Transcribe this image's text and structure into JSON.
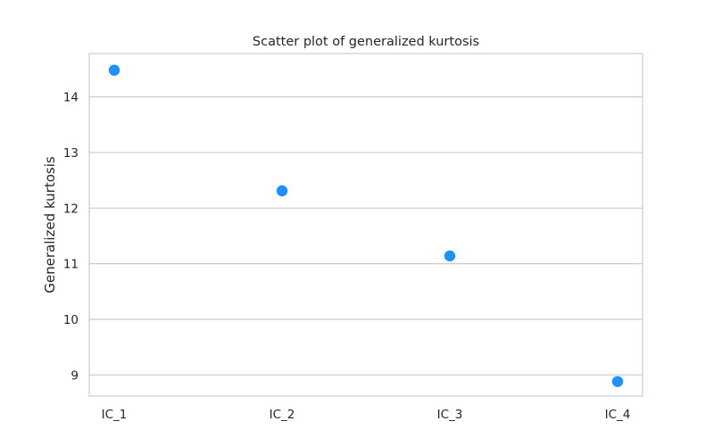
{
  "chart_data": {
    "type": "scatter",
    "title": "Scatter plot of generalized kurtosis",
    "xlabel": "",
    "ylabel": "Generalized kurtosis",
    "categories": [
      "IC_1",
      "IC_2",
      "IC_3",
      "IC_4"
    ],
    "values": [
      14.48,
      12.31,
      11.14,
      8.88
    ],
    "ylim": [
      8.62,
      14.78
    ],
    "yticks": [
      9,
      10,
      11,
      12,
      13,
      14
    ],
    "grid": "horizontal",
    "point_color": "#1e90ff",
    "grid_color": "#cccccc",
    "frame_color": "#cccccc"
  }
}
